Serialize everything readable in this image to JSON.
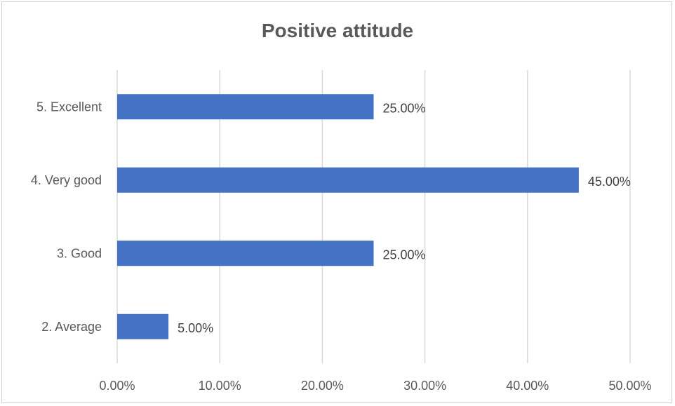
{
  "chart_data": {
    "type": "bar",
    "orientation": "horizontal",
    "title": "Positive attitude",
    "categories": [
      "5. Excellent",
      "4. Very good",
      "3. Good",
      "2. Average"
    ],
    "values": [
      25,
      45,
      25,
      5
    ],
    "data_labels": [
      "25.00%",
      "45.00%",
      "25.00%",
      "5.00%"
    ],
    "xlim": [
      0,
      50
    ],
    "x_ticks": [
      0,
      10,
      20,
      30,
      40,
      50
    ],
    "x_tick_labels": [
      "0.00%",
      "10.00%",
      "20.00%",
      "30.00%",
      "40.00%",
      "50.00%"
    ],
    "grid": "vertical",
    "legend": "none",
    "bar_color": "#4472C4",
    "grid_color": "#d9d9d9"
  }
}
